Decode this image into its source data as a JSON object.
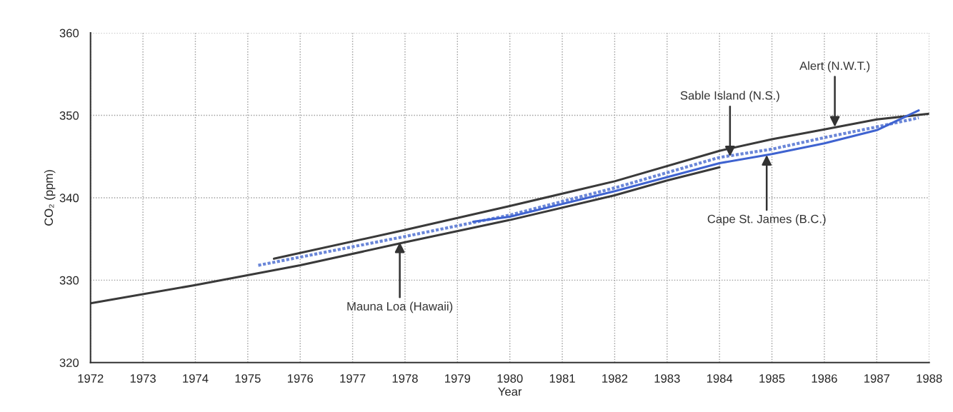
{
  "chart_data": {
    "type": "line",
    "xlabel": "Year",
    "ylabel": "CO₂ (ppm)",
    "xlim": [
      1972,
      1988
    ],
    "xticks": [
      1972,
      1973,
      1974,
      1975,
      1976,
      1977,
      1978,
      1979,
      1980,
      1981,
      1982,
      1983,
      1984,
      1985,
      1986,
      1987,
      1988
    ],
    "ylim": [
      320,
      360
    ],
    "yticks": [
      320,
      330,
      340,
      350,
      360
    ],
    "grid": true,
    "legend": false,
    "series": [
      {
        "color": "#3a3a3a",
        "line_style": "solid",
        "x": [
          1972,
          1974,
          1976,
          1978,
          1980,
          1982,
          1983,
          1984
        ],
        "values": [
          327.2,
          329.4,
          331.8,
          334.6,
          337.3,
          340.3,
          342.1,
          343.7
        ]
      },
      {
        "color": "#3a3a3a",
        "line_style": "solid",
        "x": [
          1975.5,
          1978,
          1980,
          1982,
          1984,
          1985,
          1986,
          1987,
          1988
        ],
        "values": [
          332.6,
          336.1,
          339.0,
          342.0,
          345.7,
          347.1,
          348.3,
          349.5,
          350.2
        ]
      },
      {
        "color": "#6a86d8",
        "line_style": "dotted",
        "x": [
          1975.2,
          1978,
          1980,
          1982,
          1984,
          1985,
          1986,
          1987,
          1987.8
        ],
        "values": [
          331.8,
          335.3,
          337.9,
          341.2,
          344.9,
          345.9,
          347.3,
          348.6,
          349.7
        ]
      },
      {
        "color": "#3f63d0",
        "line_style": "solid",
        "x": [
          1979.3,
          1980,
          1982,
          1984,
          1985,
          1986,
          1987,
          1987.8
        ],
        "values": [
          337.1,
          337.7,
          340.8,
          344.2,
          345.3,
          346.6,
          348.2,
          350.6
        ]
      }
    ],
    "annotations": [
      {
        "text": "Mauna Loa (Hawaii)",
        "x": 1977.9,
        "y": 334.6
      },
      {
        "text": "Sable Island (N.S.)",
        "x": 1984.2,
        "y": 345.0
      },
      {
        "text": "Cape St. James (B.C.)",
        "x": 1984.9,
        "y": 345.2
      },
      {
        "text": "Alert (N.W.T.)",
        "x": 1986.2,
        "y": 348.6
      }
    ]
  }
}
